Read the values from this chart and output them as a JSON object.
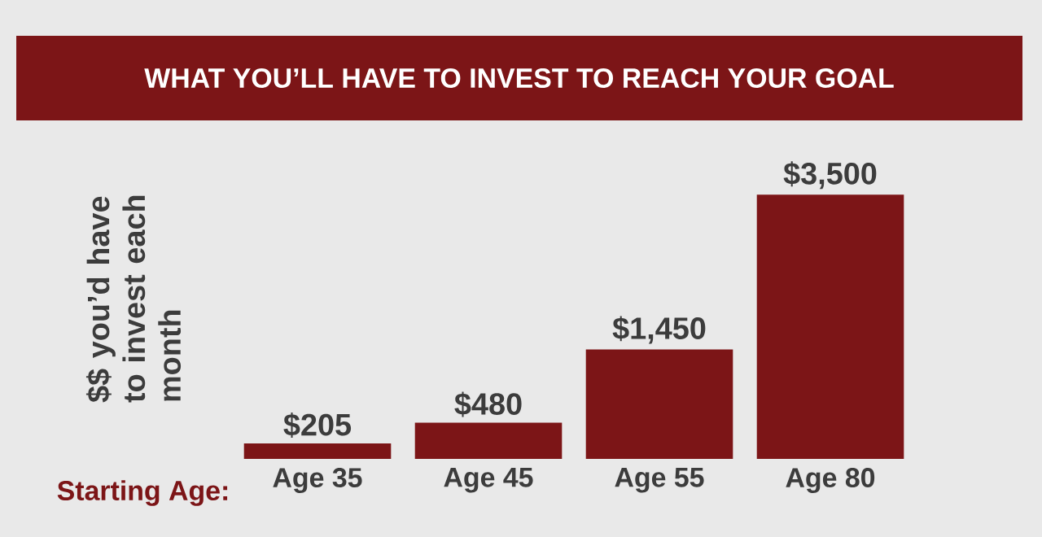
{
  "chart_data": {
    "type": "bar",
    "title": "WHAT YOU’LL HAVE TO INVEST TO REACH YOUR GOAL",
    "ylabel": "$$ you’d have to invest each month",
    "xlabel": "Starting Age:",
    "categories": [
      "Age 35",
      "Age 45",
      "Age 55",
      "Age 80"
    ],
    "values": [
      205,
      480,
      1450,
      3500
    ],
    "value_labels": [
      "$205",
      "$480",
      "$1,450",
      "$3,500"
    ],
    "color": "#7c1517"
  }
}
